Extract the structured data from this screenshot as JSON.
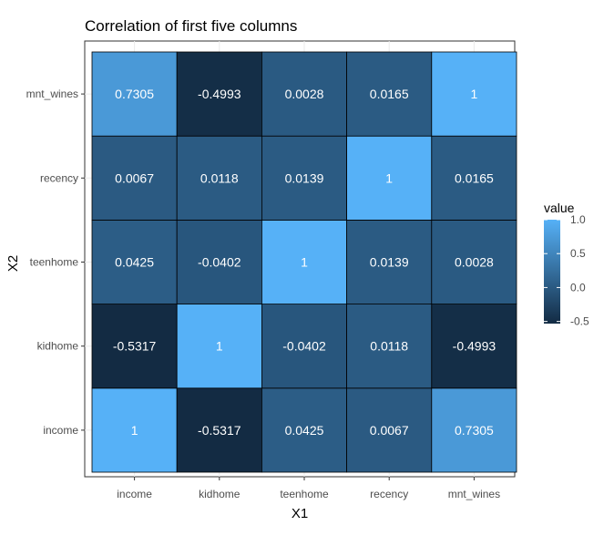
{
  "chart_data": {
    "type": "heatmap",
    "title": "Correlation of first five columns",
    "xlabel": "X1",
    "ylabel": "X2",
    "x_categories": [
      "income",
      "kidhome",
      "teenhome",
      "recency",
      "mnt_wines"
    ],
    "y_categories": [
      "income",
      "kidhome",
      "teenhome",
      "recency",
      "mnt_wines"
    ],
    "values": [
      [
        1,
        -0.5317,
        0.0425,
        0.0067,
        0.7305
      ],
      [
        -0.5317,
        1,
        -0.0402,
        0.0118,
        -0.4993
      ],
      [
        0.0425,
        -0.0402,
        1,
        0.0139,
        0.0028
      ],
      [
        0.0067,
        0.0118,
        0.0139,
        1,
        0.0165
      ],
      [
        0.7305,
        -0.4993,
        0.0028,
        0.0165,
        1
      ]
    ],
    "value_labels": [
      [
        "1",
        "-0.5317",
        "0.0425",
        "0.0067",
        "0.7305"
      ],
      [
        "-0.5317",
        "1",
        "-0.0402",
        "0.0118",
        "-0.4993"
      ],
      [
        "0.0425",
        "-0.0402",
        "1",
        "0.0139",
        "0.0028"
      ],
      [
        "0.0067",
        "0.0118",
        "0.0139",
        "1",
        "0.0165"
      ],
      [
        "0.7305",
        "-0.4993",
        "0.0028",
        "0.0165",
        "1"
      ]
    ],
    "legend": {
      "title": "value",
      "ticks": [
        1.0,
        0.5,
        0.0,
        -0.5
      ],
      "tick_labels": [
        "1.0",
        "0.5",
        "0.0",
        "-0.5"
      ],
      "range": [
        -0.5317,
        1
      ],
      "low_color": "#132B43",
      "high_color": "#56B1F7",
      "placement": "right"
    },
    "grid": true
  }
}
